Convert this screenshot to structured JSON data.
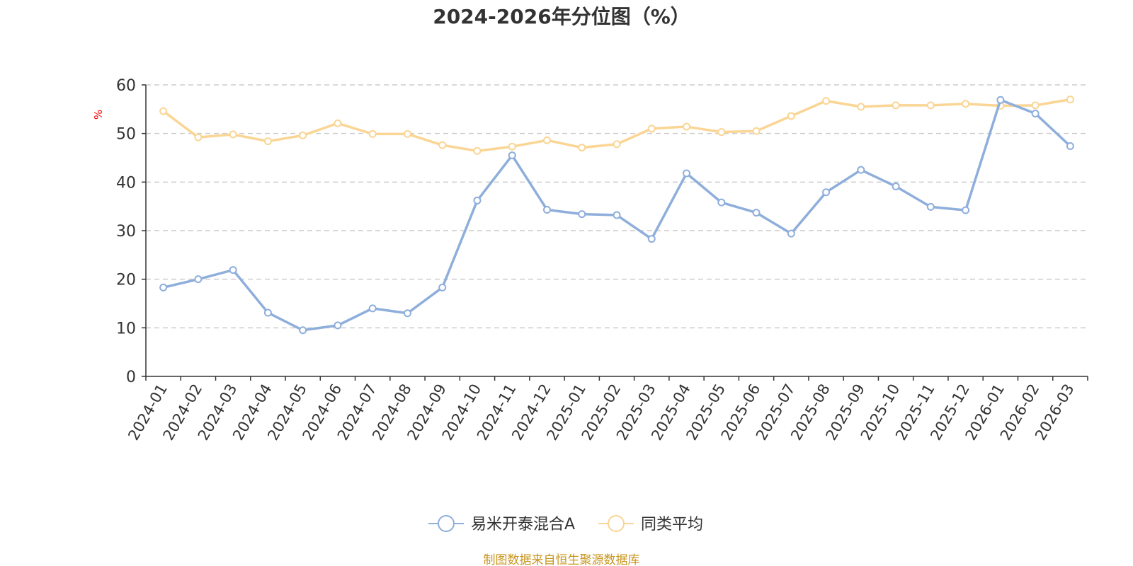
{
  "chart_data": {
    "type": "line",
    "title": "2024-2026年分位图（%）",
    "ylabel": "%",
    "ylim": [
      0,
      60
    ],
    "yticks": [
      0,
      10,
      20,
      30,
      40,
      50,
      60
    ],
    "grid": true,
    "legend_position": "bottom",
    "categories": [
      "2024-01",
      "2024-02",
      "2024-03",
      "2024-04",
      "2024-05",
      "2024-06",
      "2024-07",
      "2024-08",
      "2024-09",
      "2024-10",
      "2024-11",
      "2024-12",
      "2025-01",
      "2025-02",
      "2025-03",
      "2025-04",
      "2025-05",
      "2025-06",
      "2025-07",
      "2025-08",
      "2025-09",
      "2025-10",
      "2025-11",
      "2025-12",
      "2026-01",
      "2026-02",
      "2026-03"
    ],
    "series": [
      {
        "name": "易米开泰混合A",
        "color": "#8eaedb",
        "values": [
          18.3,
          20.0,
          21.9,
          13.1,
          9.5,
          10.5,
          14.0,
          13.0,
          18.3,
          36.2,
          45.5,
          34.3,
          33.4,
          33.2,
          28.3,
          41.8,
          35.8,
          33.7,
          29.4,
          37.9,
          42.5,
          39.1,
          34.9,
          34.2,
          56.9,
          54.1,
          47.4
        ]
      },
      {
        "name": "同类平均",
        "color": "#fad594",
        "values": [
          54.6,
          49.2,
          49.8,
          48.4,
          49.6,
          52.1,
          49.9,
          49.9,
          47.6,
          46.4,
          47.3,
          48.6,
          47.1,
          47.8,
          51.0,
          51.4,
          50.3,
          50.5,
          53.6,
          56.7,
          55.5,
          55.8,
          55.8,
          56.1,
          55.7,
          55.8,
          57.0
        ]
      }
    ]
  },
  "source": "制图数据来自恒生聚源数据库",
  "colors": {
    "axis": "#333333",
    "grid": "#cccccc",
    "ylabel": "#ff0000",
    "source": "#c8951e"
  }
}
